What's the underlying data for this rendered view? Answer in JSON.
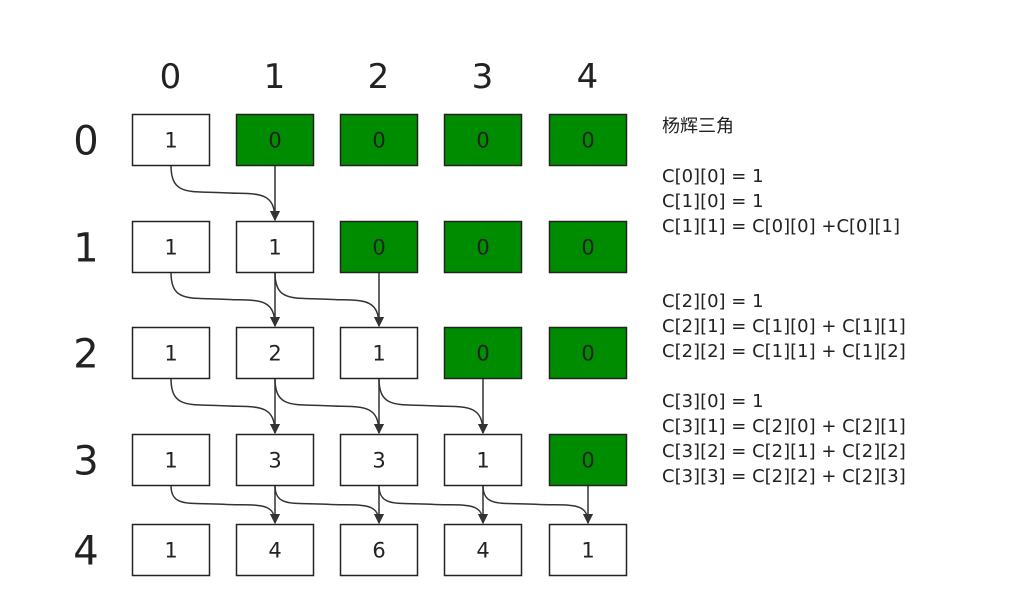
{
  "colors": {
    "filled": "#008c00",
    "empty": "#ffffff",
    "border": "#222222",
    "arrow": "#333333",
    "text": "#222222"
  },
  "column_headers": [
    "0",
    "1",
    "2",
    "3",
    "4"
  ],
  "row_headers": [
    "0",
    "1",
    "2",
    "3",
    "4"
  ],
  "grid": [
    [
      {
        "v": "1",
        "green": false
      },
      {
        "v": "0",
        "green": true
      },
      {
        "v": "0",
        "green": true
      },
      {
        "v": "0",
        "green": true
      },
      {
        "v": "0",
        "green": true
      }
    ],
    [
      {
        "v": "1",
        "green": false
      },
      {
        "v": "1",
        "green": false
      },
      {
        "v": "0",
        "green": true
      },
      {
        "v": "0",
        "green": true
      },
      {
        "v": "0",
        "green": true
      }
    ],
    [
      {
        "v": "1",
        "green": false
      },
      {
        "v": "2",
        "green": false
      },
      {
        "v": "1",
        "green": false
      },
      {
        "v": "0",
        "green": true
      },
      {
        "v": "0",
        "green": true
      }
    ],
    [
      {
        "v": "1",
        "green": false
      },
      {
        "v": "3",
        "green": false
      },
      {
        "v": "3",
        "green": false
      },
      {
        "v": "1",
        "green": false
      },
      {
        "v": "0",
        "green": true
      }
    ],
    [
      {
        "v": "1",
        "green": false
      },
      {
        "v": "4",
        "green": false
      },
      {
        "v": "6",
        "green": false
      },
      {
        "v": "4",
        "green": false
      },
      {
        "v": "1",
        "green": false
      }
    ]
  ],
  "notes": {
    "title": "杨辉三角",
    "groups": [
      [
        "C[0][0] = 1",
        "C[1][0] = 1",
        "C[1][1] = C[0][0] +C[0][1]"
      ],
      [
        "C[2][0] = 1",
        "C[2][1] = C[1][0] + C[1][1]",
        "C[2][2] = C[1][1] + C[1][2]"
      ],
      [
        "C[3][0] = 1",
        "C[3][1] = C[2][0] + C[2][1]",
        "C[3][2] = C[2][1] + C[2][2]",
        "C[3][3] = C[2][2] + C[2][3]"
      ]
    ]
  }
}
